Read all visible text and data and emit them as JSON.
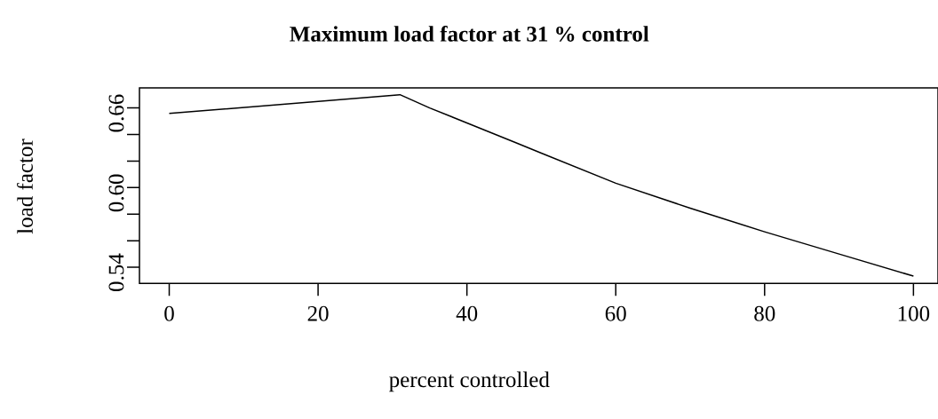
{
  "chart_data": {
    "type": "line",
    "title": "Maximum load factor at  31 % control",
    "xlabel": "percent controlled",
    "ylabel": "load factor",
    "x": [
      0,
      31,
      35,
      40,
      46.5,
      50,
      60,
      70,
      80,
      90,
      100
    ],
    "series": [
      {
        "color": "#000000",
        "values": [
          0.6558,
          0.67,
          0.66,
          0.6487,
          0.634,
          0.626,
          0.6033,
          0.5845,
          0.5667,
          0.55,
          0.5333
        ]
      }
    ],
    "xlim": [
      -4.0,
      103.3
    ],
    "ylim": [
      0.5278,
      0.6751
    ],
    "xticks": [
      0,
      20,
      40,
      60,
      80,
      100
    ],
    "yticks": [
      0.54,
      {
        "value": 0.56,
        "label": null
      },
      {
        "value": 0.58,
        "label": null
      },
      {
        "value": 0.6,
        "label": "0.60"
      },
      {
        "value": 0.62,
        "label": null
      },
      {
        "value": 0.64,
        "label": null
      },
      0.66
    ],
    "grid": false
  }
}
